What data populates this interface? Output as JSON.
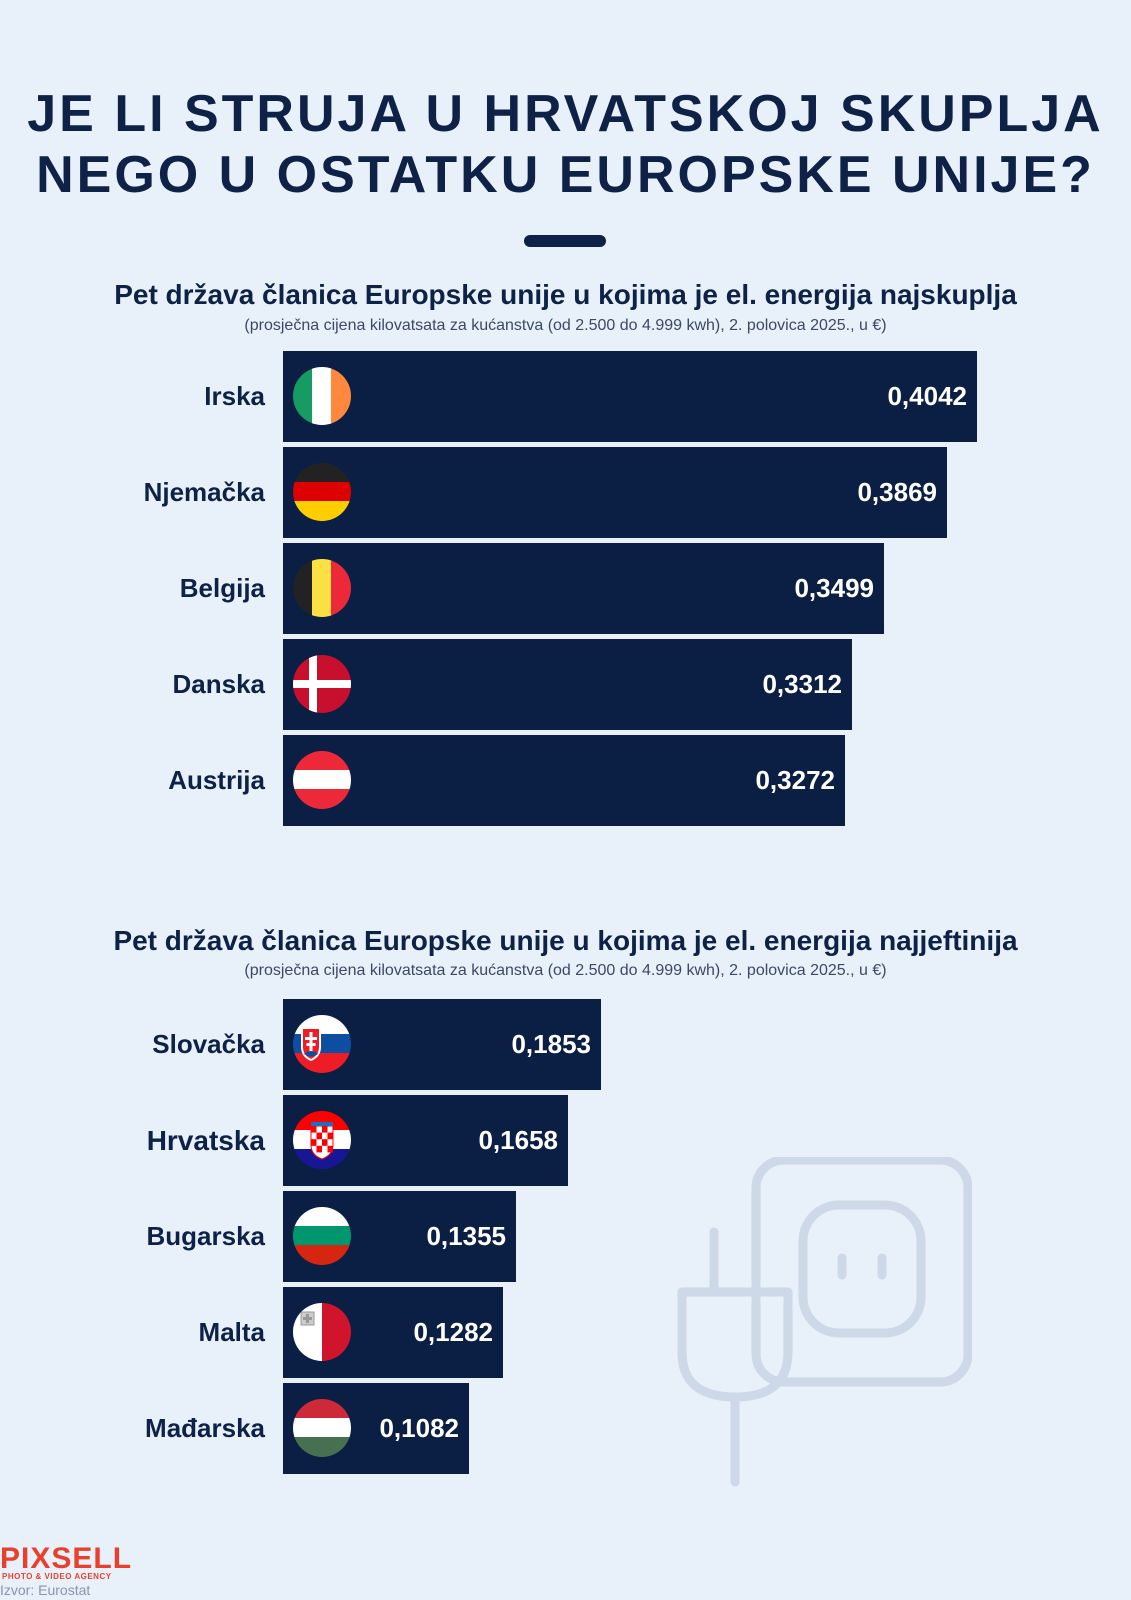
{
  "title_lines": [
    "Je li struja u Hrvatskoj skuplja",
    "nego u ostatku Europske unije?"
  ],
  "chart_data": [
    {
      "type": "bar",
      "title": "Pet država članica Europske unije u kojima je el. energija najskuplja",
      "subtitle": "(prosječna cijena kilovatsata za kućanstva (od 2.500 do 4.999 kwh), 2. polovica 2025., u €)",
      "categories": [
        "Irska",
        "Njemačka",
        "Belgija",
        "Danska",
        "Austrija"
      ],
      "values": [
        0.4042,
        0.3869,
        0.3499,
        0.3312,
        0.3272
      ],
      "value_labels": [
        "0,4042",
        "0,3869",
        "0,3499",
        "0,3312",
        "0,3272"
      ],
      "flags": [
        "ireland-flag",
        "germany-flag",
        "belgium-flag",
        "denmark-flag",
        "austria-flag"
      ],
      "highlight": [],
      "xlim": [
        0,
        0.4042
      ],
      "bar_color": "#0b1f45",
      "grid": false
    },
    {
      "type": "bar",
      "title": "Pet država članica Europske unije u kojima je el. energija najjeftinija",
      "subtitle": "(prosječna cijena kilovatsata za kućanstva (od 2.500 do 4.999 kwh), 2. polovica 2025., u €)",
      "categories": [
        "Slovačka",
        "Hrvatska",
        "Bugarska",
        "Malta",
        "Mađarska"
      ],
      "values": [
        0.1853,
        0.1658,
        0.1355,
        0.1282,
        0.1082
      ],
      "value_labels": [
        "0,1853",
        "0,1658",
        "0,1355",
        "0,1282",
        "0,1082"
      ],
      "flags": [
        "slovakia-flag",
        "croatia-flag",
        "bulgaria-flag",
        "malta-flag",
        "hungary-flag"
      ],
      "highlight": [
        "Hrvatska"
      ],
      "xlim": [
        0,
        0.4042
      ],
      "bar_color": "#0b1f45",
      "grid": false
    }
  ],
  "logo": {
    "name": "PIXSELL",
    "tagline": "PHOTO & VIDEO AGENCY"
  },
  "source": "Izvor: Eurostat",
  "colors": {
    "background": "#e8f0fa",
    "text": "#0d2246",
    "bar": "#0b1f45",
    "logo": "#e8402a",
    "plug_icon": "#cdd9e8"
  },
  "decoration": {
    "icon": "plug-socket-icon"
  }
}
